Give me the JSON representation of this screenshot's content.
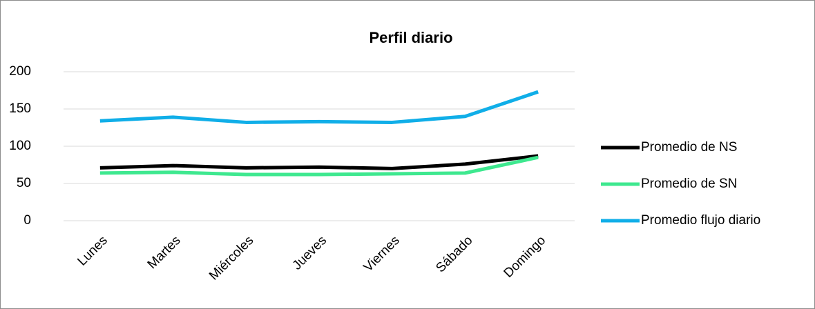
{
  "chart_data": {
    "type": "line",
    "title": "Perfil diario",
    "categories": [
      "Lunes",
      "Martes",
      "Miércoles",
      "Jueves",
      "Viernes",
      "Sábado",
      "Domingo"
    ],
    "series": [
      {
        "name": "Promedio de NS",
        "color": "#000000",
        "values": [
          71,
          74,
          71,
          72,
          70,
          76,
          87
        ]
      },
      {
        "name": "Promedio de SN",
        "color": "#3ee88f",
        "values": [
          64,
          65,
          62,
          62,
          63,
          64,
          85
        ]
      },
      {
        "name": "Promedio flujo diario",
        "color": "#10aee8",
        "values": [
          134,
          139,
          132,
          133,
          132,
          140,
          173
        ]
      }
    ],
    "ylim": [
      0,
      200
    ],
    "yticks": [
      0,
      50,
      100,
      150,
      200
    ],
    "grid": true,
    "legend": "right"
  }
}
